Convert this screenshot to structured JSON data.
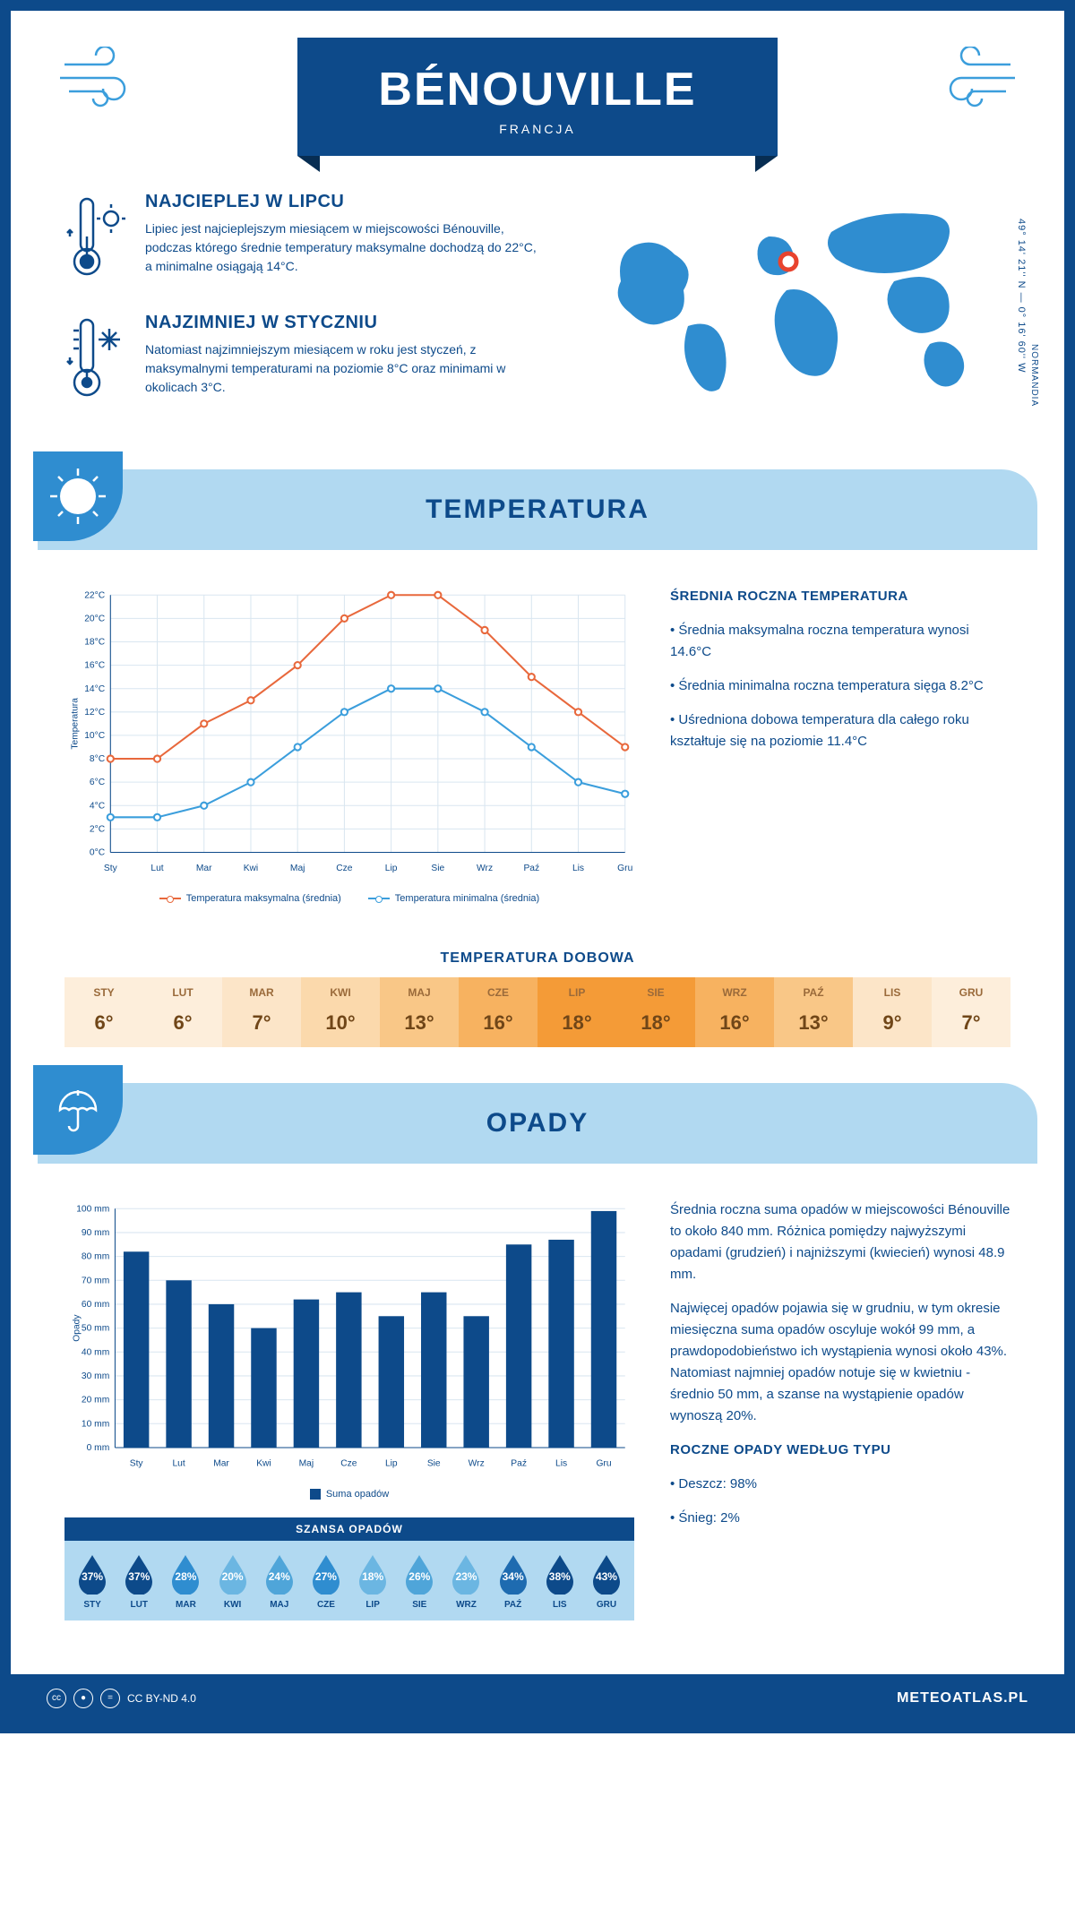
{
  "header": {
    "city": "BÉNOUVILLE",
    "country": "FRANCJA"
  },
  "coords": "49° 14' 21'' N — 0° 16' 60'' W",
  "region": "NORMANDIA",
  "intro": {
    "hot": {
      "title": "NAJCIEPLEJ W LIPCU",
      "body": "Lipiec jest najcieplejszym miesiącem w miejscowości Bénouville, podczas którego średnie temperatury maksymalne dochodzą do 22°C, a minimalne osiągają 14°C."
    },
    "cold": {
      "title": "NAJZIMNIEJ W STYCZNIU",
      "body": "Natomiast najzimniejszym miesiącem w roku jest styczeń, z maksymalnymi temperaturami na poziomie 8°C oraz minimami w okolicach 3°C."
    }
  },
  "sections": {
    "temp": "TEMPERATURA",
    "rain": "OPADY"
  },
  "temp_chart": {
    "type": "line",
    "months": [
      "Sty",
      "Lut",
      "Mar",
      "Kwi",
      "Maj",
      "Cze",
      "Lip",
      "Sie",
      "Wrz",
      "Paź",
      "Lis",
      "Gru"
    ],
    "max_series": [
      8,
      8,
      11,
      13,
      16,
      20,
      22,
      22,
      19,
      15,
      12,
      9
    ],
    "min_series": [
      3,
      3,
      4,
      6,
      9,
      12,
      14,
      14,
      12,
      9,
      6,
      5
    ],
    "max_color": "#e8683c",
    "min_color": "#3b9edc",
    "grid_color": "#d9e6f0",
    "axis_color": "#0d4a8a",
    "ylim": [
      0,
      22
    ],
    "ytick_step": 2,
    "ylabel": "Temperatura",
    "legend": [
      "Temperatura maksymalna (średnia)",
      "Temperatura minimalna (średnia)"
    ],
    "fontsize": 10
  },
  "temp_side": {
    "title": "ŚREDNIA ROCZNA TEMPERATURA",
    "b1": "• Średnia maksymalna roczna temperatura wynosi 14.6°C",
    "b2": "• Średnia minimalna roczna temperatura sięga 8.2°C",
    "b3": "• Uśredniona dobowa temperatura dla całego roku kształtuje się na poziomie 11.4°C"
  },
  "dobowa": {
    "title": "TEMPERATURA DOBOWA",
    "months": [
      "STY",
      "LUT",
      "MAR",
      "KWI",
      "MAJ",
      "CZE",
      "LIP",
      "SIE",
      "WRZ",
      "PAŹ",
      "LIS",
      "GRU"
    ],
    "values": [
      "6°",
      "6°",
      "7°",
      "10°",
      "13°",
      "16°",
      "18°",
      "18°",
      "16°",
      "13°",
      "9°",
      "7°"
    ],
    "colors": [
      "#fdeedb",
      "#fdeedb",
      "#fce5c8",
      "#fbd9ac",
      "#f9c787",
      "#f7b260",
      "#f49b37",
      "#f49b37",
      "#f7b260",
      "#f9c787",
      "#fce5c8",
      "#fdeedb"
    ]
  },
  "rain_chart": {
    "type": "bar",
    "months": [
      "Sty",
      "Lut",
      "Mar",
      "Kwi",
      "Maj",
      "Cze",
      "Lip",
      "Sie",
      "Wrz",
      "Paź",
      "Lis",
      "Gru"
    ],
    "values": [
      82,
      70,
      60,
      50,
      62,
      65,
      55,
      65,
      55,
      85,
      87,
      99
    ],
    "bar_color": "#0d4a8a",
    "grid_color": "#d9e6f0",
    "axis_color": "#0d4a8a",
    "ylim": [
      0,
      100
    ],
    "ytick_step": 10,
    "ylabel": "Opady",
    "legend": "Suma opadów",
    "fontsize": 10
  },
  "rain_side": {
    "p1": "Średnia roczna suma opadów w miejscowości Bénouville to około 840 mm. Różnica pomiędzy najwyższymi opadami (grudzień) i najniższymi (kwiecień) wynosi 48.9 mm.",
    "p2": "Najwięcej opadów pojawia się w grudniu, w tym okresie miesięczna suma opadów oscyluje wokół 99 mm, a prawdopodobieństwo ich wystąpienia wynosi około 43%. Natomiast najmniej opadów notuje się w kwietniu - średnio 50 mm, a szanse na wystąpienie opadów wynoszą 20%.",
    "type_title": "ROCZNE OPADY WEDŁUG TYPU",
    "type_b1": "• Deszcz: 98%",
    "type_b2": "• Śnieg: 2%"
  },
  "rain_chance": {
    "title": "SZANSA OPADÓW",
    "months": [
      "STY",
      "LUT",
      "MAR",
      "KWI",
      "MAJ",
      "CZE",
      "LIP",
      "SIE",
      "WRZ",
      "PAŹ",
      "LIS",
      "GRU"
    ],
    "values": [
      "37%",
      "37%",
      "28%",
      "20%",
      "24%",
      "27%",
      "18%",
      "26%",
      "23%",
      "34%",
      "38%",
      "43%"
    ],
    "colors": [
      "#0d4a8a",
      "#0d4a8a",
      "#2f8dd0",
      "#6bb6e2",
      "#4fa5d9",
      "#2f8dd0",
      "#6bb6e2",
      "#4fa5d9",
      "#6bb6e2",
      "#1e6bb0",
      "#0d4a8a",
      "#0d4a8a"
    ]
  },
  "footer": {
    "license": "CC BY-ND 4.0",
    "site": "METEOATLAS.PL"
  }
}
